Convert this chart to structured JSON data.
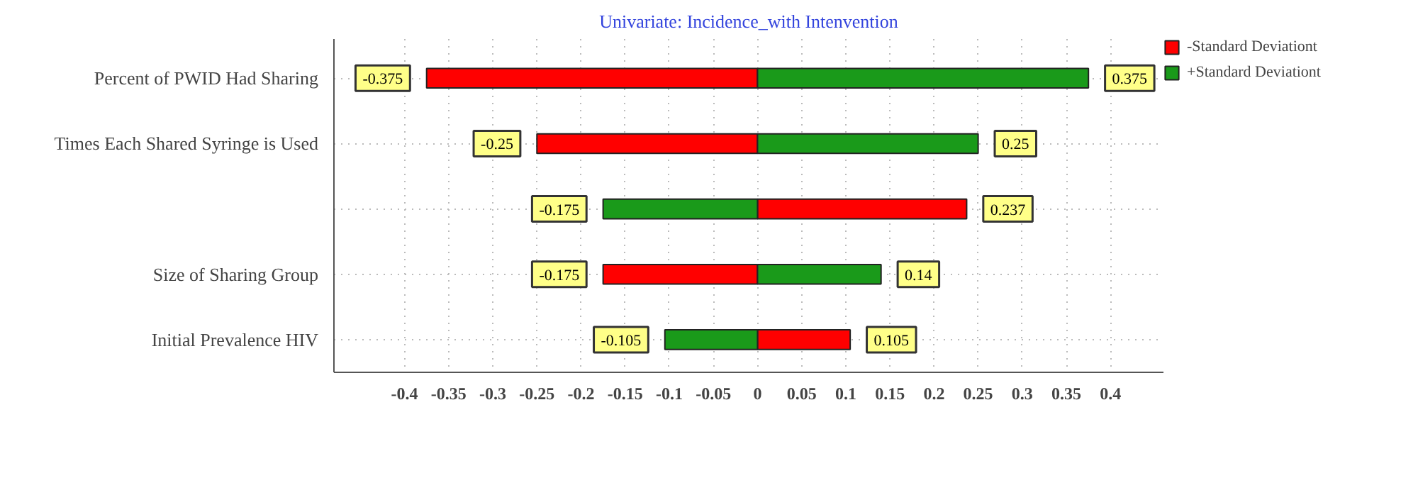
{
  "chart_data": {
    "type": "bar",
    "orientation": "horizontal",
    "title": "Univariate: Incidence_with Intenvention",
    "categories": [
      "Percent of PWID Had Sharing",
      "Times Each Shared Syringe is Used",
      null,
      "Size of Sharing Group",
      "Initial Prevalence HIV"
    ],
    "series": [
      {
        "name": "-Standard Deviationt",
        "color": "#ff0000",
        "values": [
          -0.375,
          -0.25,
          0.237,
          -0.175,
          0.105
        ]
      },
      {
        "name": "+Standard Deviationt",
        "color": "#1a9a1a",
        "values": [
          0.375,
          0.25,
          -0.175,
          0.14,
          -0.105
        ]
      }
    ],
    "xlim": [
      -0.48,
      0.46
    ],
    "stacked": true,
    "xticks": [
      -0.4,
      -0.35,
      -0.3,
      -0.25,
      -0.2,
      -0.15,
      -0.1,
      -0.05,
      0,
      0.05,
      0.1,
      0.15,
      0.2,
      0.25,
      0.3,
      0.35,
      0.4
    ],
    "data_labels": true,
    "grid": true,
    "line_style": "dotted",
    "legend": "top right"
  }
}
